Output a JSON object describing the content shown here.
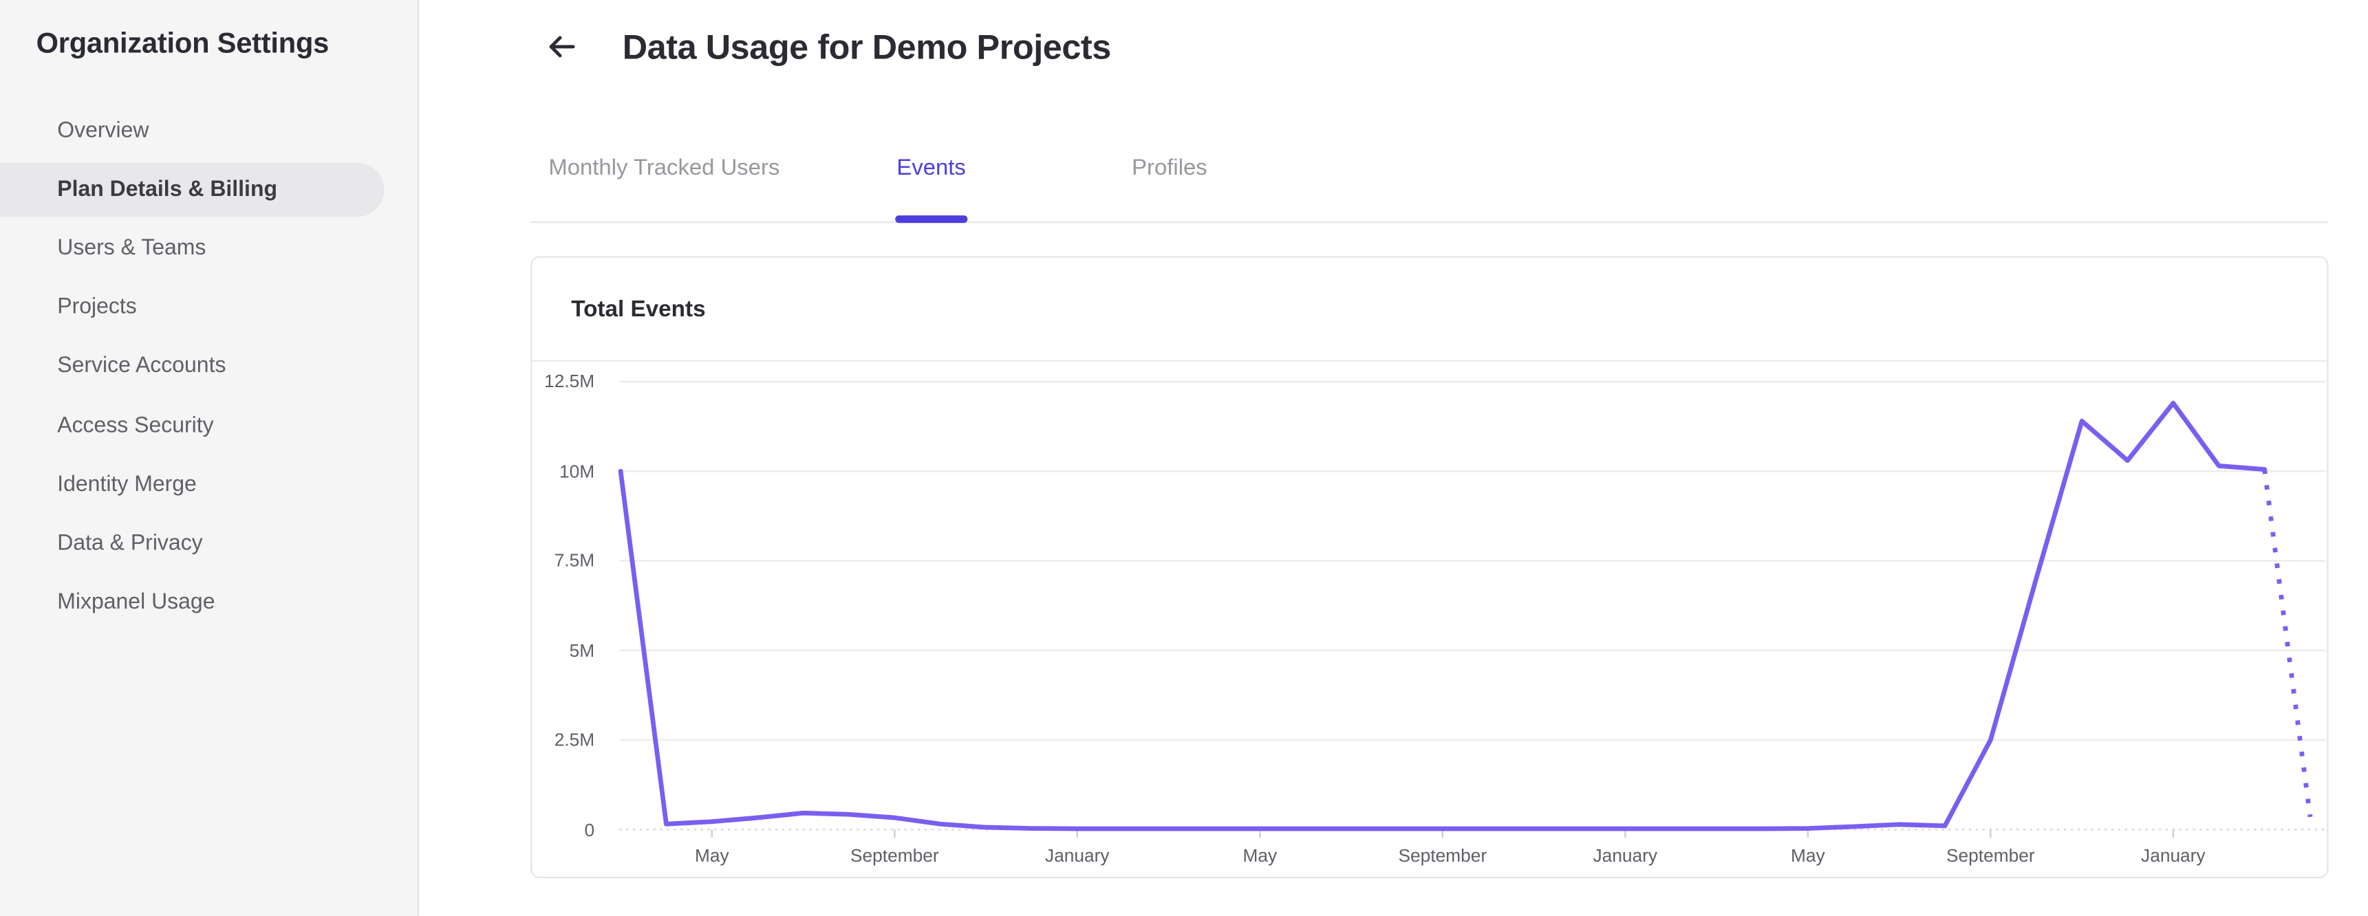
{
  "sidebar": {
    "title": "Organization Settings",
    "items": [
      {
        "label": "Overview",
        "active": false
      },
      {
        "label": "Plan Details & Billing",
        "active": true
      },
      {
        "label": "Users & Teams",
        "active": false
      },
      {
        "label": "Projects",
        "active": false
      },
      {
        "label": "Service Accounts",
        "active": false
      },
      {
        "label": "Access Security",
        "active": false
      },
      {
        "label": "Identity Merge",
        "active": false
      },
      {
        "label": "Data & Privacy",
        "active": false
      },
      {
        "label": "Mixpanel Usage",
        "active": false
      }
    ]
  },
  "header": {
    "title": "Data Usage for Demo Projects",
    "back_icon": "back-arrow-icon"
  },
  "tabs": [
    {
      "label": "Monthly Tracked Users",
      "active": false
    },
    {
      "label": "Events",
      "active": true
    },
    {
      "label": "Profiles",
      "active": false
    }
  ],
  "chart_data": {
    "type": "line",
    "title": "Total Events",
    "xlabel": "",
    "ylabel": "",
    "y_tick_labels": [
      "12.5M",
      "10M",
      "7.5M",
      "5M",
      "2.5M",
      "0"
    ],
    "ylim_millions": [
      0,
      12.5
    ],
    "x_tick_labels": [
      "May",
      "September",
      "January",
      "May",
      "September",
      "January",
      "May",
      "September",
      "January"
    ],
    "x_tick_month_indices": [
      2,
      6,
      10,
      14,
      18,
      22,
      26,
      30,
      34
    ],
    "grid": true,
    "legend_position": "none",
    "series": [
      {
        "name": "Total Events",
        "color": "#7A5EF0",
        "values_millions": [
          10.0,
          0.15,
          0.22,
          0.33,
          0.46,
          0.42,
          0.33,
          0.15,
          0.06,
          0.03,
          0.02,
          0.02,
          0.02,
          0.02,
          0.02,
          0.02,
          0.02,
          0.02,
          0.02,
          0.02,
          0.02,
          0.02,
          0.02,
          0.02,
          0.02,
          0.02,
          0.03,
          0.08,
          0.14,
          0.1,
          2.5,
          7.0,
          11.4,
          10.3,
          11.9,
          10.15,
          10.05,
          0.35
        ],
        "solid_point_count": 37,
        "trailing_segment_style": "dotted"
      }
    ]
  },
  "colors": {
    "accent": "#4C3EDB",
    "line": "#7A5EF0",
    "sidebar_bg": "#F5F5F6",
    "active_pill": "#E8E8EA",
    "card_border": "#E5E5E8",
    "grid_line": "#EDEDEF",
    "zero_line": "#D8D8DC",
    "tick_mark": "#D2D2D6",
    "axis_text": "#5E5E66",
    "heading_text": "#2B2B33",
    "muted_text": "#97979D"
  }
}
